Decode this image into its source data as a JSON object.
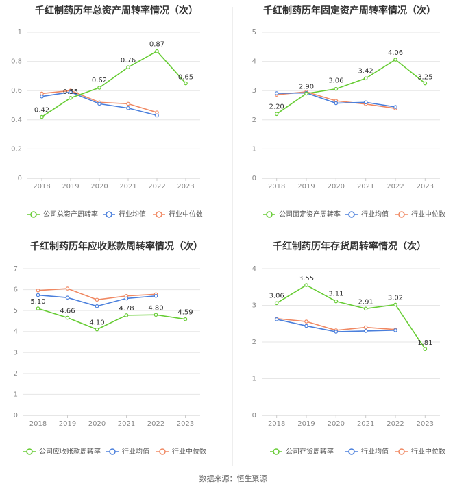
{
  "source": "数据来源：恒生聚源",
  "colors": {
    "company": "#66cc33",
    "industry_avg": "#4a7fdc",
    "industry_median": "#f08862"
  },
  "chart_data": [
    {
      "type": "line",
      "title": "千红制药历年总资产周转率情况（次）",
      "categories": [
        "2018",
        "2019",
        "2020",
        "2021",
        "2022",
        "2023"
      ],
      "ylim": [
        0,
        1
      ],
      "yticks": [
        "0",
        "0.2",
        "0.4",
        "0.6",
        "0.8",
        "1"
      ],
      "grid": true,
      "legend_position": "bottom",
      "series": [
        {
          "name": "公司总资产周转率",
          "values": [
            0.42,
            0.55,
            0.62,
            0.76,
            0.87,
            0.65
          ],
          "labels": [
            "0.42",
            "0.55",
            "0.62",
            "0.76",
            "0.87",
            "0.65"
          ]
        },
        {
          "name": "行业均值",
          "values": [
            0.56,
            0.59,
            0.51,
            0.48,
            0.43,
            null
          ]
        },
        {
          "name": "行业中位数",
          "values": [
            0.58,
            0.6,
            0.52,
            0.51,
            0.45,
            null
          ]
        }
      ]
    },
    {
      "type": "line",
      "title": "千红制药历年固定资产周转率情况（次）",
      "categories": [
        "2018",
        "2019",
        "2020",
        "2021",
        "2022",
        "2023"
      ],
      "ylim": [
        0,
        5
      ],
      "yticks": [
        "0",
        "1",
        "2",
        "3",
        "4",
        "5"
      ],
      "grid": true,
      "legend_position": "bottom",
      "series": [
        {
          "name": "公司固定资产周转率",
          "values": [
            2.2,
            2.9,
            3.06,
            3.42,
            4.06,
            3.25
          ],
          "labels": [
            "2.20",
            "2.90",
            "3.06",
            "3.42",
            "4.06",
            "3.25"
          ]
        },
        {
          "name": "行业均值",
          "values": [
            2.91,
            2.92,
            2.57,
            2.6,
            2.44,
            null
          ]
        },
        {
          "name": "行业中位数",
          "values": [
            2.86,
            2.96,
            2.65,
            2.54,
            2.39,
            null
          ]
        }
      ]
    },
    {
      "type": "line",
      "title": "千红制药历年应收账款周转率情况（次）",
      "categories": [
        "2018",
        "2019",
        "2020",
        "2021",
        "2022",
        "2023"
      ],
      "ylim": [
        0,
        7
      ],
      "yticks": [
        "0",
        "1",
        "2",
        "3",
        "4",
        "5",
        "6",
        "7"
      ],
      "grid": true,
      "legend_position": "bottom",
      "series": [
        {
          "name": "公司应收账款周转率",
          "values": [
            5.1,
            4.66,
            4.1,
            4.78,
            4.8,
            4.59
          ],
          "labels": [
            "5.10",
            "4.66",
            "4.10",
            "4.78",
            "4.80",
            "4.59"
          ]
        },
        {
          "name": "行业均值",
          "values": [
            5.74,
            5.62,
            5.21,
            5.58,
            5.7,
            null
          ]
        },
        {
          "name": "行业中位数",
          "values": [
            5.96,
            6.05,
            5.52,
            5.7,
            5.78,
            null
          ]
        }
      ]
    },
    {
      "type": "line",
      "title": "千红制药历年存货周转率情况（次）",
      "categories": [
        "2018",
        "2019",
        "2020",
        "2021",
        "2022",
        "2023"
      ],
      "ylim": [
        0,
        4
      ],
      "yticks": [
        "0",
        "1",
        "2",
        "3",
        "4"
      ],
      "grid": true,
      "legend_position": "bottom",
      "series": [
        {
          "name": "公司存货周转率",
          "values": [
            3.06,
            3.55,
            3.11,
            2.91,
            3.02,
            1.81
          ],
          "labels": [
            "3.06",
            "3.55",
            "3.11",
            "2.91",
            "3.02",
            "1.81"
          ]
        },
        {
          "name": "行业均值",
          "values": [
            2.62,
            2.44,
            2.28,
            2.3,
            2.32,
            null
          ]
        },
        {
          "name": "行业中位数",
          "values": [
            2.64,
            2.56,
            2.32,
            2.4,
            2.34,
            null
          ]
        }
      ]
    }
  ]
}
